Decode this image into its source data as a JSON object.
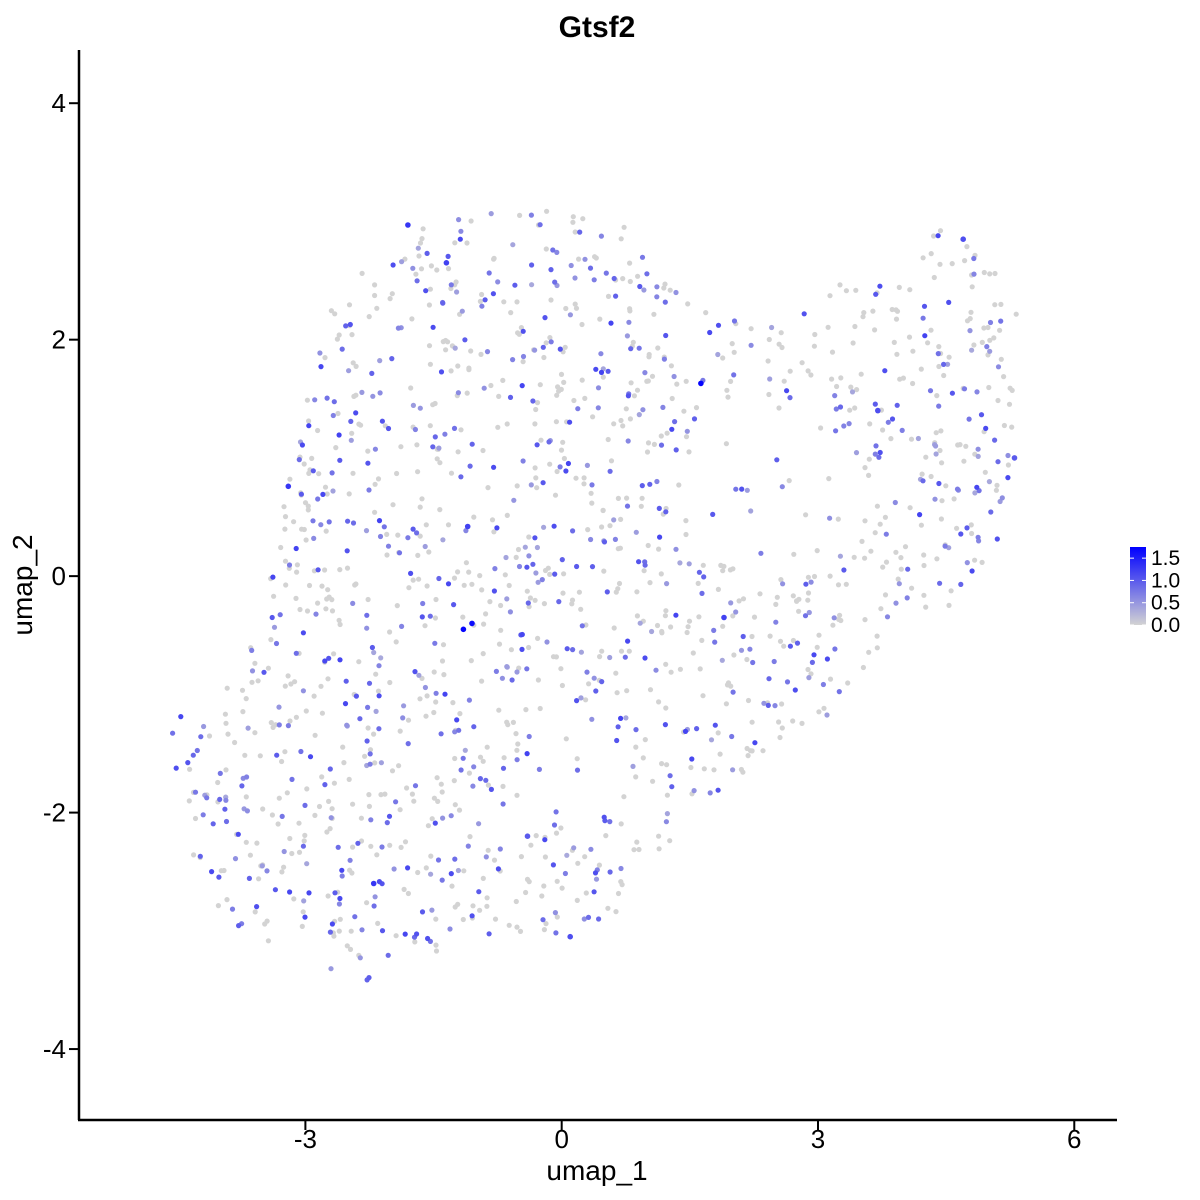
{
  "chart_data": {
    "type": "scatter",
    "title": "Gtsf2",
    "xlabel": "umap_1",
    "ylabel": "umap_2",
    "xlim": [
      -5.65,
      6.5
    ],
    "ylim": [
      -4.6,
      4.45
    ],
    "x_ticks": [
      -3,
      0,
      3,
      6
    ],
    "y_ticks": [
      -4,
      -2,
      0,
      2,
      4
    ],
    "x_tick_labels": [
      "-3",
      "0",
      "3",
      "6"
    ],
    "y_tick_labels": [
      "-4",
      "-2",
      "0",
      "2",
      "4"
    ],
    "grid": false,
    "legend": {
      "type": "colorbar",
      "placement": "right",
      "ticks": [
        "1.5",
        "1.0",
        "0.5",
        "0.0"
      ],
      "tick_values": [
        1.5,
        1.0,
        0.5,
        0.0
      ],
      "range": [
        0,
        1.75
      ],
      "low_color": "#d3d3d3",
      "high_color": "#0000ff"
    },
    "highlighted_points": [
      {
        "x": 1.63,
        "y": 1.63,
        "value": 1.72
      },
      {
        "x": -1.15,
        "y": -0.45,
        "value": 1.7
      },
      {
        "x": -1.05,
        "y": -0.4,
        "value": 1.65
      },
      {
        "x": -3.2,
        "y": 0.76,
        "value": 1.3
      },
      {
        "x": -1.8,
        "y": 2.97,
        "value": 1.3
      },
      {
        "x": -2.2,
        "y": -2.6,
        "value": 1.3
      },
      {
        "x": -1.1,
        "y": 0.42,
        "value": 1.2
      },
      {
        "x": 1.9,
        "y": -0.35,
        "value": 1.2
      },
      {
        "x": -1.35,
        "y": 2.65,
        "value": 1.2
      },
      {
        "x": 3.7,
        "y": 1.4,
        "value": 1.1
      },
      {
        "x": 4.7,
        "y": 2.85,
        "value": 1.1
      },
      {
        "x": 0.1,
        "y": -3.05,
        "value": 1.1
      },
      {
        "x": 5.3,
        "y": 1.0,
        "value": 1.0
      },
      {
        "x": -0.4,
        "y": -2.2,
        "value": 1.0
      }
    ],
    "background_points": {
      "count": 1550,
      "value_range": [
        0,
        1.2
      ],
      "fraction_expressing": 0.4,
      "region_outline": [
        [
          -4.7,
          -1.3
        ],
        [
          -4.0,
          -0.9
        ],
        [
          -3.5,
          -0.4
        ],
        [
          -3.3,
          0.5
        ],
        [
          -3.0,
          1.5
        ],
        [
          -2.8,
          2.3
        ],
        [
          -2.2,
          2.7
        ],
        [
          -1.5,
          3.0
        ],
        [
          -0.5,
          3.1
        ],
        [
          0.3,
          3.1
        ],
        [
          0.9,
          2.9
        ],
        [
          1.3,
          2.5
        ],
        [
          1.8,
          2.2
        ],
        [
          2.6,
          2.1
        ],
        [
          3.3,
          2.5
        ],
        [
          4.0,
          2.6
        ],
        [
          4.4,
          3.0
        ],
        [
          4.9,
          2.8
        ],
        [
          5.4,
          2.3
        ],
        [
          5.3,
          1.3
        ],
        [
          5.2,
          0.5
        ],
        [
          4.9,
          -0.1
        ],
        [
          4.2,
          -0.4
        ],
        [
          3.5,
          -0.8
        ],
        [
          3.0,
          -1.3
        ],
        [
          2.4,
          -1.5
        ],
        [
          1.6,
          -2.0
        ],
        [
          0.9,
          -2.5
        ],
        [
          0.6,
          -2.9
        ],
        [
          0.1,
          -3.1
        ],
        [
          -1.2,
          -3.0
        ],
        [
          -1.6,
          -3.3
        ],
        [
          -2.3,
          -3.5
        ],
        [
          -2.8,
          -3.3
        ],
        [
          -3.5,
          -3.1
        ],
        [
          -4.1,
          -2.8
        ],
        [
          -4.45,
          -2.2
        ],
        [
          -4.4,
          -1.8
        ],
        [
          -4.7,
          -1.5
        ]
      ]
    }
  }
}
